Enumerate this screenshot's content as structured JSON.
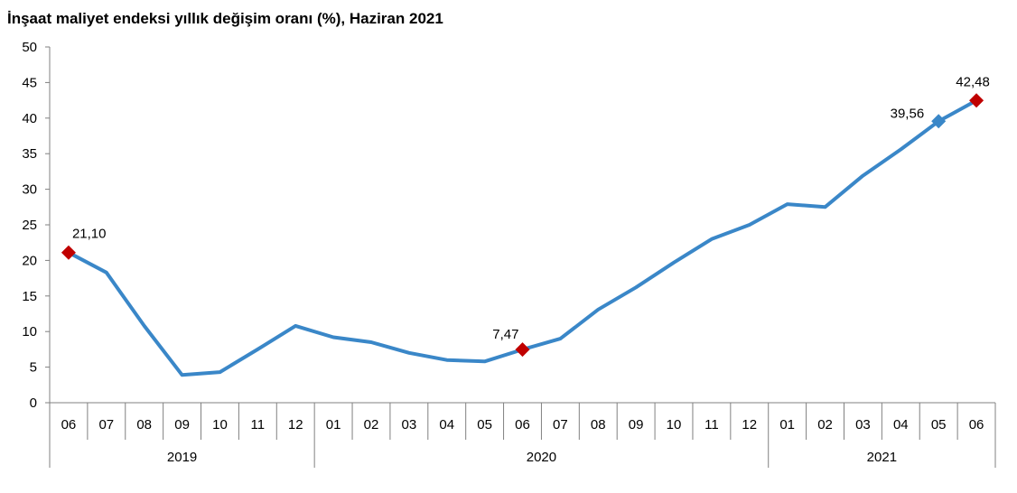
{
  "chart_data": {
    "type": "line",
    "title": "İnşaat maliyet endeksi yıllık değişim oranı (%), Haziran 2021",
    "xlabel": "",
    "ylabel": "",
    "ylim": [
      0,
      50
    ],
    "yticks": [
      "0",
      "5",
      "10",
      "15",
      "20",
      "25",
      "30",
      "35",
      "40",
      "45",
      "50"
    ],
    "grid": false,
    "legend": "none",
    "categories": [
      "06",
      "07",
      "08",
      "09",
      "10",
      "11",
      "12",
      "01",
      "02",
      "03",
      "04",
      "05",
      "06",
      "07",
      "08",
      "09",
      "10",
      "11",
      "12",
      "01",
      "02",
      "03",
      "04",
      "05",
      "06"
    ],
    "year_groups": [
      {
        "label": "2019",
        "count": 7
      },
      {
        "label": "2020",
        "count": 12
      },
      {
        "label": "2021",
        "count": 6
      }
    ],
    "series": [
      {
        "color": "#3a87c8",
        "values": [
          21.1,
          18.3,
          10.8,
          3.9,
          4.3,
          7.5,
          10.8,
          9.2,
          8.5,
          7.0,
          6.0,
          5.8,
          7.47,
          9.0,
          13.1,
          16.2,
          19.7,
          23.0,
          25.0,
          27.9,
          27.5,
          31.9,
          35.6,
          39.56,
          42.48
        ]
      }
    ],
    "annotations": [
      {
        "index": 0,
        "text": "21,10",
        "marker_color": "#c00000",
        "position": "above-right"
      },
      {
        "index": 12,
        "text": "7,47",
        "marker_color": "#c00000",
        "position": "above-left"
      },
      {
        "index": 23,
        "text": "39,56",
        "marker_color": "#3a87c8",
        "position": "left"
      },
      {
        "index": 24,
        "text": "42,48",
        "marker_color": "#c00000",
        "position": "above"
      }
    ],
    "colors": {
      "axis": "#808080",
      "line": "#3a87c8",
      "highlight": "#c00000"
    }
  }
}
